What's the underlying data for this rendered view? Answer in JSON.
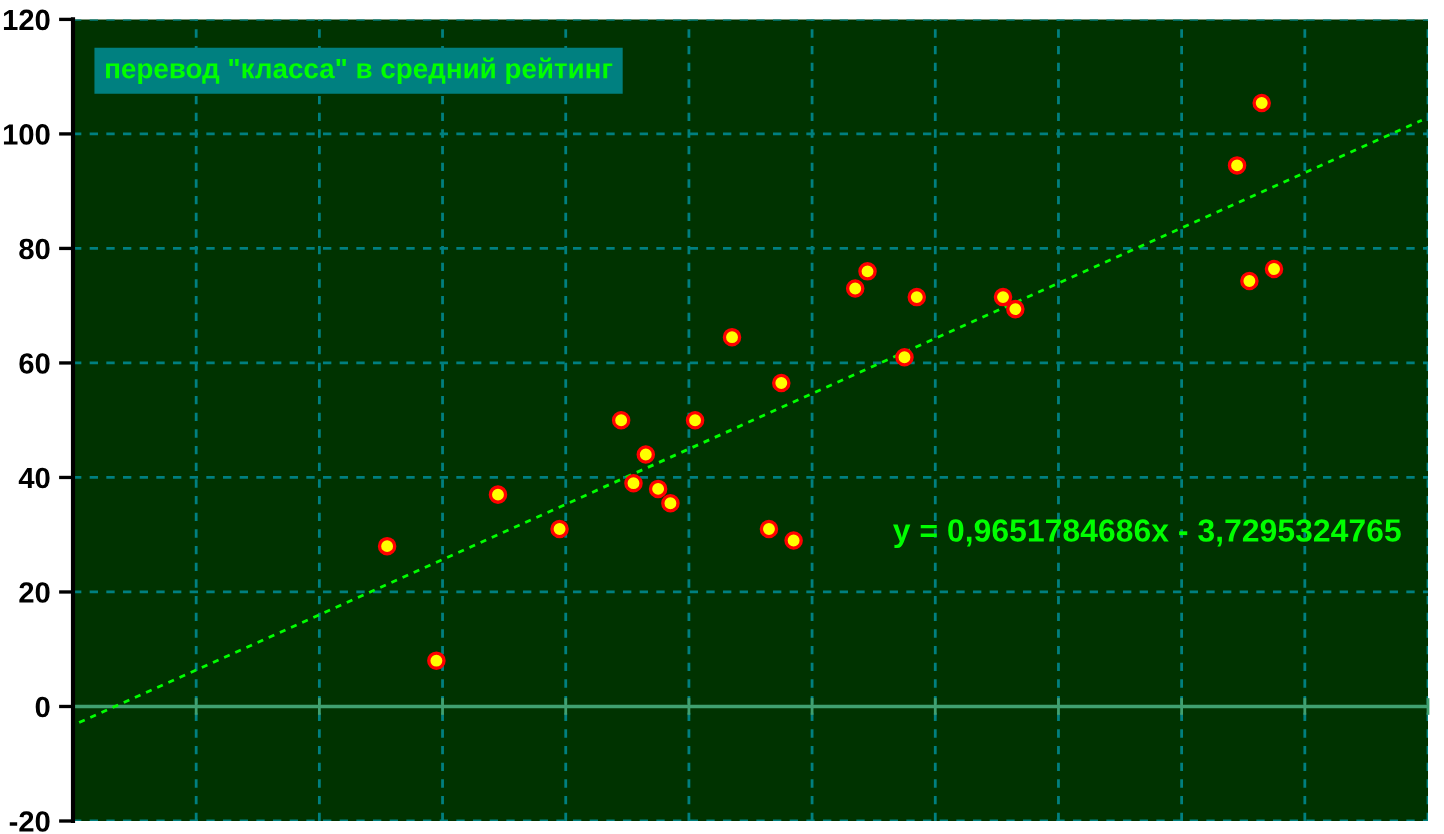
{
  "chart_data": {
    "type": "scatter",
    "title": "перевод \"класса\" в средний рейтинг",
    "annotations": [
      "y = 0,9651784686x - 3,7295324765"
    ],
    "categories": [
      null,
      null,
      null,
      null,
      null,
      null,
      null,
      null,
      null,
      null,
      null,
      null,
      null,
      null,
      null,
      null,
      null,
      null,
      null,
      null,
      null,
      null,
      null,
      null,
      null,
      null,
      null,
      null,
      null,
      null,
      null,
      null,
      null,
      null,
      null,
      null,
      null,
      null,
      null,
      null,
      null,
      null,
      null,
      null,
      null,
      null,
      null,
      null,
      null,
      null,
      null,
      null,
      null,
      null,
      null,
      null,
      null,
      null,
      null,
      null,
      null,
      null,
      null,
      null,
      null,
      null,
      null,
      null,
      null,
      null,
      null,
      null,
      null,
      null,
      null,
      null,
      null,
      null,
      null,
      null,
      null,
      null,
      null,
      null,
      null,
      null,
      null,
      null,
      null,
      null,
      null,
      null,
      null,
      null,
      null,
      null,
      null,
      null,
      null,
      null,
      null,
      null,
      null,
      null,
      null,
      null,
      null,
      null,
      null,
      null
    ],
    "ylim": [
      -20,
      120
    ],
    "yticks": [
      -20,
      0,
      20,
      40,
      60,
      80,
      100,
      120
    ],
    "tick_labels": "y",
    "grid": true,
    "ref_lines": [
      {
        "axis": "y",
        "value": 0,
        "color": "#40a070",
        "line_style": "solid"
      }
    ],
    "series": [
      {
        "color": "#ffff00",
        "marker": "circle",
        "values": [
          null,
          null,
          null,
          null,
          null,
          null,
          null,
          null,
          null,
          null,
          null,
          null,
          null,
          null,
          null,
          null,
          null,
          null,
          null,
          null,
          null,
          null,
          null,
          null,
          null,
          28,
          null,
          null,
          null,
          8,
          null,
          null,
          null,
          null,
          37,
          null,
          null,
          null,
          null,
          31,
          null,
          null,
          null,
          null,
          50,
          39,
          44,
          38,
          35.5,
          null,
          50,
          null,
          null,
          64.5,
          null,
          null,
          31,
          56.5,
          29,
          null,
          null,
          null,
          null,
          73,
          76,
          null,
          null,
          61,
          71.5,
          null,
          null,
          null,
          null,
          null,
          null,
          71.5,
          69.4,
          null,
          null,
          null,
          null,
          null,
          null,
          null,
          null,
          null,
          null,
          null,
          null,
          null,
          null,
          null,
          null,
          null,
          94.5,
          74.3,
          105.4,
          76.4,
          null,
          null,
          null,
          null,
          null,
          null,
          null,
          null,
          null,
          null,
          null,
          null
        ]
      },
      {
        "type": "line",
        "color": "#00ff00",
        "line_style": "dashed",
        "values": [
          -2.8,
          null,
          null,
          null,
          null,
          null,
          null,
          null,
          null,
          null,
          null,
          null,
          null,
          null,
          null,
          null,
          null,
          null,
          null,
          null,
          null,
          null,
          null,
          null,
          null,
          null,
          null,
          null,
          null,
          null,
          null,
          null,
          null,
          null,
          null,
          null,
          null,
          null,
          null,
          null,
          null,
          null,
          null,
          null,
          null,
          null,
          null,
          null,
          null,
          null,
          null,
          null,
          null,
          null,
          null,
          null,
          null,
          null,
          null,
          null,
          null,
          null,
          null,
          null,
          null,
          null,
          null,
          null,
          null,
          null,
          null,
          null,
          null,
          null,
          null,
          null,
          null,
          null,
          null,
          null,
          null,
          null,
          null,
          null,
          null,
          null,
          null,
          null,
          null,
          null,
          null,
          null,
          null,
          null,
          null,
          null,
          null,
          null,
          null,
          null,
          null,
          null,
          null,
          null,
          null,
          null,
          null,
          null,
          null,
          102.4
        ]
      }
    ]
  }
}
